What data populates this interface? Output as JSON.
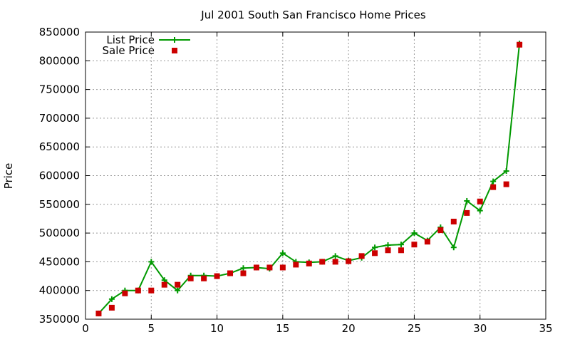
{
  "chart_data": {
    "type": "line",
    "title": "Jul 2001 South San Francisco Home Prices",
    "xlabel": "",
    "ylabel": "Price",
    "xlim": [
      0,
      35
    ],
    "ylim": [
      350000,
      850000
    ],
    "x_ticks": [
      0,
      5,
      10,
      15,
      20,
      25,
      30,
      35
    ],
    "y_ticks": [
      350000,
      400000,
      450000,
      500000,
      550000,
      600000,
      650000,
      700000,
      750000,
      800000,
      850000
    ],
    "grid": true,
    "legend_position": "top-left",
    "series": [
      {
        "name": "List Price",
        "style": "line-with-plus-markers",
        "color": "#009900",
        "x": [
          1,
          2,
          3,
          4,
          5,
          6,
          7,
          8,
          9,
          10,
          11,
          12,
          13,
          14,
          15,
          16,
          17,
          18,
          19,
          20,
          21,
          22,
          23,
          24,
          25,
          26,
          27,
          28,
          29,
          30,
          31,
          32,
          33
        ],
        "values": [
          360000,
          385000,
          400000,
          400000,
          450000,
          418000,
          400000,
          426000,
          426000,
          425000,
          430000,
          439000,
          440000,
          438000,
          465000,
          450000,
          449000,
          450000,
          460000,
          452000,
          457000,
          475000,
          479000,
          480000,
          500000,
          487000,
          510000,
          475000,
          556000,
          539000,
          590000,
          608000,
          830000
        ]
      },
      {
        "name": "Sale Price",
        "style": "square-markers",
        "color": "#cc0000",
        "x": [
          1,
          2,
          3,
          4,
          5,
          6,
          7,
          8,
          9,
          10,
          11,
          12,
          13,
          14,
          15,
          16,
          17,
          18,
          19,
          20,
          21,
          22,
          23,
          24,
          25,
          26,
          27,
          28,
          29,
          30,
          31,
          32,
          33
        ],
        "values": [
          360000,
          370000,
          395000,
          400000,
          400000,
          410000,
          410000,
          421000,
          421000,
          425000,
          430000,
          430000,
          440000,
          440000,
          440000,
          445000,
          447000,
          450000,
          450000,
          451000,
          460000,
          465000,
          470000,
          470000,
          480000,
          485000,
          505000,
          520000,
          535000,
          555000,
          580000,
          585000,
          828000
        ]
      }
    ]
  }
}
